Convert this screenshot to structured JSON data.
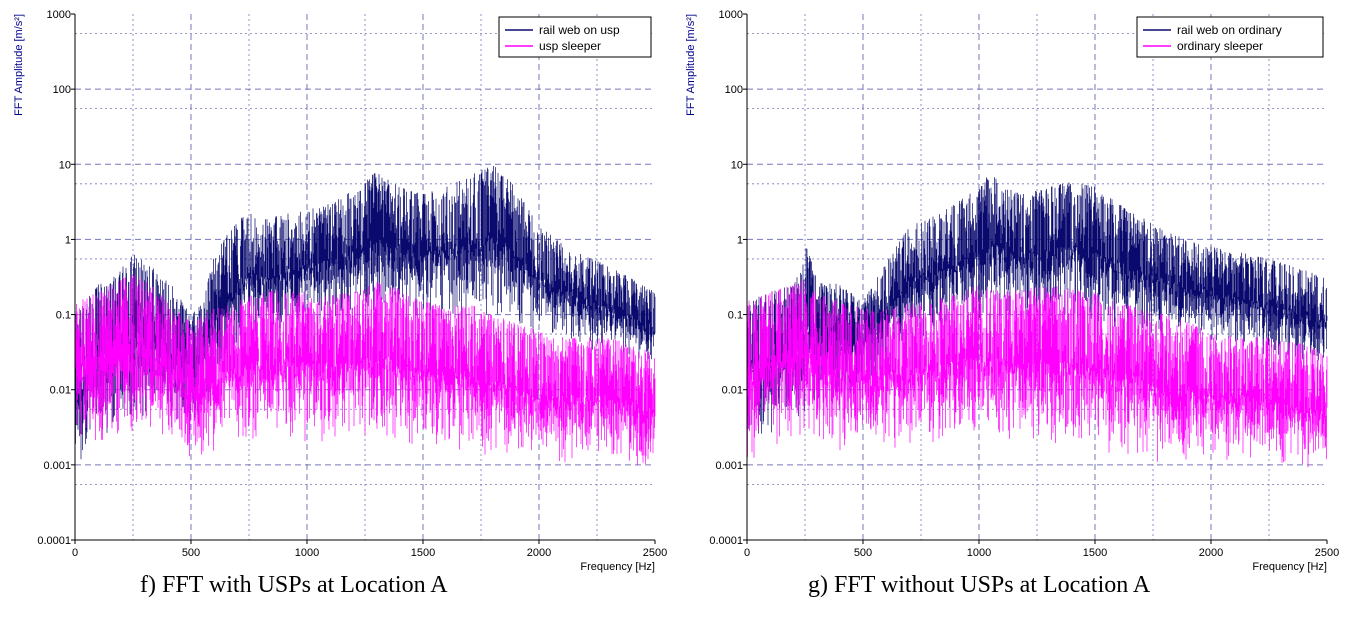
{
  "chart_data": [
    {
      "type": "line",
      "title": "",
      "xlabel": "Frequency [Hz]",
      "ylabel": "FFT Amplitude [m/s²]",
      "xlim": [
        0,
        2500
      ],
      "ylim": [
        0.0001,
        1000
      ],
      "yscale": "log",
      "grid": true,
      "legend_position": "top-right",
      "x_ticks": [
        "0",
        "500",
        "1000",
        "1500",
        "2000",
        "2500"
      ],
      "y_ticks": [
        "0.0001",
        "0.001",
        "0.01",
        "0.1",
        "1",
        "10",
        "100",
        "1000"
      ],
      "caption": "f) FFT with USPs at Location A",
      "series": [
        {
          "name": "rail web on usp",
          "color": "#0a0a6e",
          "x": [
            0,
            100,
            200,
            250,
            300,
            400,
            500,
            550,
            600,
            650,
            700,
            750,
            800,
            900,
            1000,
            1100,
            1200,
            1300,
            1400,
            1500,
            1600,
            1700,
            1800,
            1900,
            2000,
            2100,
            2200,
            2300,
            2400,
            2500
          ],
          "upper": [
            0.1,
            0.25,
            0.4,
            0.8,
            0.5,
            0.3,
            0.1,
            0.15,
            0.6,
            1.1,
            1.7,
            2.5,
            1.8,
            2.2,
            2.5,
            3.0,
            4.5,
            8.0,
            5.0,
            4.0,
            5.0,
            7.0,
            10.0,
            5.0,
            1.5,
            0.9,
            0.6,
            0.45,
            0.3,
            0.2
          ],
          "lower": [
            0.0008,
            0.002,
            0.003,
            0.004,
            0.004,
            0.004,
            0.003,
            0.004,
            0.01,
            0.02,
            0.03,
            0.04,
            0.04,
            0.05,
            0.06,
            0.07,
            0.08,
            0.09,
            0.09,
            0.08,
            0.08,
            0.08,
            0.09,
            0.07,
            0.05,
            0.04,
            0.035,
            0.03,
            0.025,
            0.02
          ]
        },
        {
          "name": "usp sleeper",
          "color": "#ff00ff",
          "x": [
            0,
            100,
            200,
            250,
            300,
            400,
            500,
            600,
            700,
            800,
            900,
            1000,
            1100,
            1200,
            1300,
            1400,
            1500,
            1600,
            1700,
            1800,
            1900,
            2000,
            2100,
            2200,
            2300,
            2400,
            2500
          ],
          "upper": [
            0.15,
            0.2,
            0.3,
            0.35,
            0.3,
            0.15,
            0.08,
            0.12,
            0.15,
            0.2,
            0.22,
            0.2,
            0.18,
            0.2,
            0.28,
            0.22,
            0.15,
            0.13,
            0.14,
            0.1,
            0.08,
            0.06,
            0.05,
            0.05,
            0.05,
            0.04,
            0.03
          ],
          "lower": [
            0.002,
            0.0015,
            0.002,
            0.0018,
            0.002,
            0.0015,
            0.001,
            0.0015,
            0.002,
            0.002,
            0.002,
            0.0018,
            0.0018,
            0.002,
            0.002,
            0.0018,
            0.0015,
            0.0015,
            0.0015,
            0.0012,
            0.001,
            0.001,
            0.001,
            0.001,
            0.001,
            0.0008,
            0.0008
          ]
        }
      ]
    },
    {
      "type": "line",
      "title": "",
      "xlabel": "Frequency [Hz]",
      "ylabel": "FFT Amplitude [m/s²]",
      "xlim": [
        0,
        2500
      ],
      "ylim": [
        0.0001,
        1000
      ],
      "yscale": "log",
      "grid": true,
      "legend_position": "top-right",
      "x_ticks": [
        "0",
        "500",
        "1000",
        "1500",
        "2000",
        "2500"
      ],
      "y_ticks": [
        "0.0001",
        "0.001",
        "0.01",
        "0.1",
        "1",
        "10",
        "100",
        "1000"
      ],
      "caption": "g) FFT without USPs at Location A",
      "series": [
        {
          "name": "rail web on ordinary",
          "color": "#0a0a6e",
          "x": [
            0,
            100,
            200,
            250,
            300,
            400,
            500,
            600,
            700,
            800,
            900,
            1000,
            1050,
            1100,
            1200,
            1300,
            1400,
            1500,
            1600,
            1700,
            1800,
            1900,
            2000,
            2100,
            2200,
            2300,
            2400,
            2500
          ],
          "upper": [
            0.15,
            0.2,
            0.25,
            1.0,
            0.3,
            0.25,
            0.15,
            0.5,
            1.5,
            2.0,
            3.0,
            5.0,
            8.0,
            5.0,
            4.0,
            5.0,
            6.0,
            5.0,
            3.0,
            2.0,
            1.3,
            1.0,
            0.8,
            0.7,
            0.6,
            0.5,
            0.4,
            0.3
          ],
          "lower": [
            0.002,
            0.002,
            0.003,
            0.004,
            0.005,
            0.007,
            0.01,
            0.02,
            0.04,
            0.05,
            0.06,
            0.07,
            0.08,
            0.08,
            0.08,
            0.08,
            0.08,
            0.07,
            0.06,
            0.05,
            0.05,
            0.045,
            0.04,
            0.035,
            0.03,
            0.025,
            0.02,
            0.02
          ]
        },
        {
          "name": "ordinary sleeper",
          "color": "#ff00ff",
          "x": [
            0,
            100,
            200,
            250,
            300,
            400,
            500,
            600,
            700,
            800,
            900,
            1000,
            1100,
            1200,
            1300,
            1400,
            1500,
            1600,
            1700,
            1800,
            1900,
            2000,
            2100,
            2200,
            2300,
            2400,
            2500
          ],
          "upper": [
            0.15,
            0.2,
            0.25,
            0.3,
            0.2,
            0.15,
            0.12,
            0.12,
            0.15,
            0.15,
            0.2,
            0.25,
            0.2,
            0.22,
            0.25,
            0.22,
            0.2,
            0.15,
            0.12,
            0.1,
            0.08,
            0.06,
            0.05,
            0.05,
            0.05,
            0.04,
            0.03
          ],
          "lower": [
            0.001,
            0.0015,
            0.002,
            0.002,
            0.0015,
            0.0015,
            0.0015,
            0.0015,
            0.0018,
            0.0018,
            0.002,
            0.002,
            0.002,
            0.0018,
            0.0018,
            0.0015,
            0.0015,
            0.0012,
            0.0012,
            0.001,
            0.001,
            0.001,
            0.001,
            0.001,
            0.0008,
            0.0008,
            0.0008
          ]
        }
      ]
    }
  ]
}
